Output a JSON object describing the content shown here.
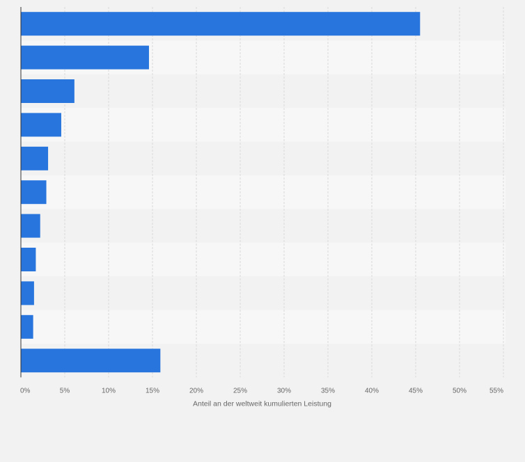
{
  "chart_data": {
    "type": "bar",
    "orientation": "horizontal",
    "categories": [
      "",
      "",
      "",
      "",
      "",
      "",
      "",
      "",
      "",
      "",
      ""
    ],
    "values": [
      45.5,
      14.6,
      6.1,
      4.6,
      3.1,
      2.9,
      2.2,
      1.7,
      1.5,
      1.4,
      15.9
    ],
    "title": "",
    "xlabel": "Anteil an der weltweit kumulierten Leistung",
    "ylabel": "",
    "xlim": [
      0,
      55
    ],
    "xticks": [
      0,
      5,
      10,
      15,
      20,
      25,
      30,
      35,
      40,
      45,
      50,
      55
    ],
    "xtick_labels": [
      "0%",
      "5%",
      "10%",
      "15%",
      "20%",
      "25%",
      "30%",
      "35%",
      "40%",
      "45%",
      "50%",
      "55%"
    ],
    "grid": true,
    "colors": {
      "bar": "#2876dd",
      "band_light": "#f7f7f7",
      "band_dark": "#f2f2f2",
      "grid": "#d9d9d9",
      "axis": "#333333",
      "text": "#666666"
    }
  }
}
